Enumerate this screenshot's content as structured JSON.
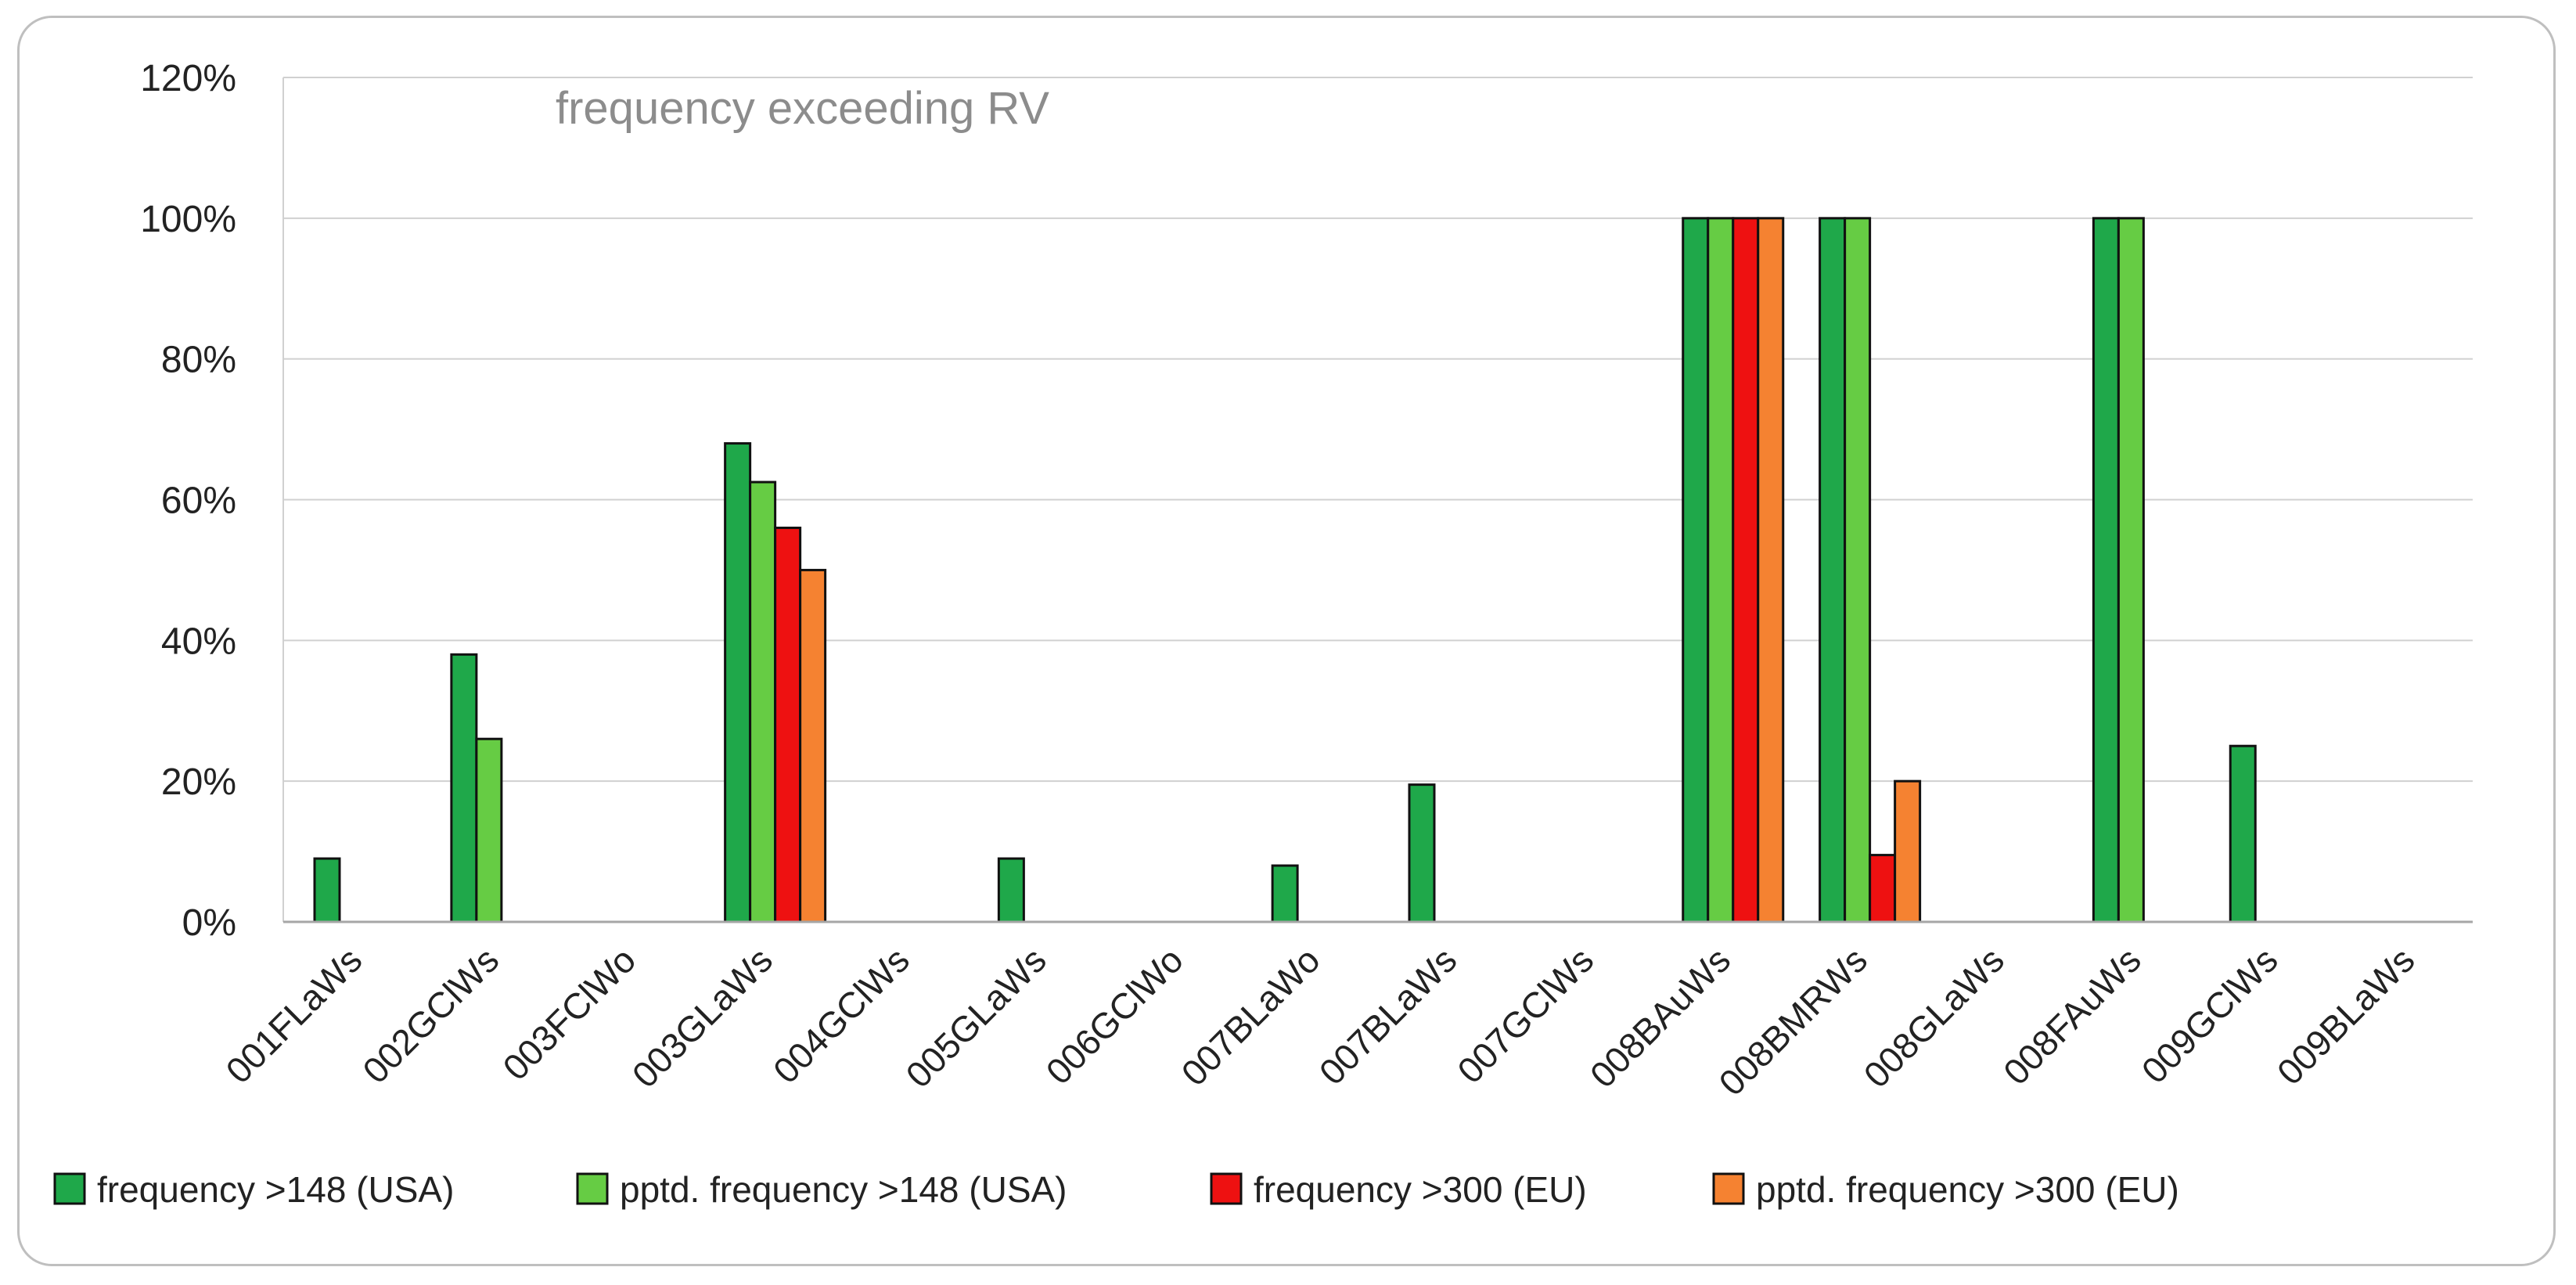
{
  "chart_data": {
    "type": "bar",
    "title": "frequency exceeding RV",
    "xlabel": "",
    "ylabel": "",
    "ylim": [
      0,
      120
    ],
    "yticks": [
      "0%",
      "20%",
      "40%",
      "60%",
      "80%",
      "100%",
      "120%"
    ],
    "grid": true,
    "legend_position": "bottom",
    "categories": [
      "001FLaWs",
      "002GClWs",
      "003FClWo",
      "003GLaWs",
      "004GClWs",
      "005GLaWs",
      "006GClWo",
      "007BLaWo",
      "007BLaWs",
      "007GClWs",
      "008BAuWs",
      "008BMRWs",
      "008GLaWs",
      "008FAuWs",
      "009GClWs",
      "009BLaWs"
    ],
    "series": [
      {
        "name": "frequency >148 (USA)",
        "color": "#1fa84a",
        "values": [
          9,
          38,
          0,
          68,
          0,
          9,
          0,
          8,
          19.5,
          0,
          100,
          100,
          0,
          100,
          25,
          0
        ]
      },
      {
        "name": "pptd. frequency >148 (USA)",
        "color": "#66cc44",
        "values": [
          0,
          26,
          0,
          62.5,
          0,
          0,
          0,
          0,
          0,
          0,
          100,
          100,
          0,
          100,
          0,
          0
        ]
      },
      {
        "name": "frequency >300 (EU)",
        "color": "#ee1111",
        "values": [
          0,
          0,
          0,
          56,
          0,
          0,
          0,
          0,
          0,
          0,
          100,
          9.5,
          0,
          0,
          0,
          0
        ]
      },
      {
        "name": "pptd. frequency >300 (EU)",
        "color": "#f58231",
        "values": [
          0,
          0,
          0,
          50,
          0,
          0,
          0,
          0,
          0,
          0,
          100,
          20,
          0,
          0,
          0,
          0
        ]
      }
    ]
  }
}
